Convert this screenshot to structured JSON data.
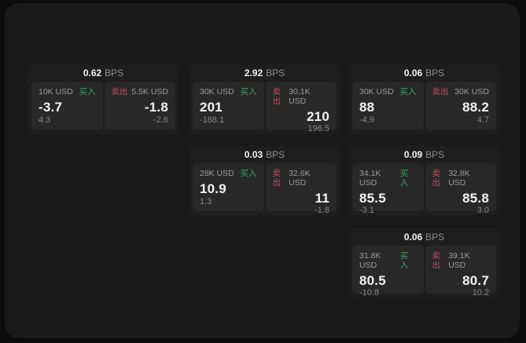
{
  "page": {
    "bps_unit": "BPS",
    "buy_label": "买入",
    "sell_label": "卖出"
  },
  "colors": {
    "background": "#0c0c0c",
    "panel": "#1a1a1a",
    "card": "#1e1e1e",
    "subpanel": "#282828",
    "buy_green": "#3aa566",
    "sell_red": "#c04a63",
    "text_primary": "#f4f4f4",
    "text_muted": "#9b9b9b"
  },
  "cards": [
    {
      "bps": "0.62",
      "buy": {
        "amount": "10K USD",
        "price": "-3.7",
        "delta": "4.3"
      },
      "sell": {
        "amount": "5.5K USD",
        "price": "-1.8",
        "delta": "-2.6"
      }
    },
    {
      "bps": "2.92",
      "buy": {
        "amount": "30K USD",
        "price": "201",
        "delta": "-188.1"
      },
      "sell": {
        "amount": "30.1K USD",
        "price": "210",
        "delta": "196.5"
      }
    },
    {
      "bps": "0.06",
      "buy": {
        "amount": "30K USD",
        "price": "88",
        "delta": "-4.9"
      },
      "sell": {
        "amount": "30K USD",
        "price": "88.2",
        "delta": "4.7"
      }
    },
    {
      "bps": "0.03",
      "buy": {
        "amount": "28K USD",
        "price": "10.9",
        "delta": "1.3"
      },
      "sell": {
        "amount": "32.6K USD",
        "price": "11",
        "delta": "-1.8"
      }
    },
    {
      "bps": "0.09",
      "buy": {
        "amount": "34.1K USD",
        "price": "85.5",
        "delta": "-3.1"
      },
      "sell": {
        "amount": "32.8K USD",
        "price": "85.8",
        "delta": "3.0"
      }
    },
    {
      "bps": "0.06",
      "buy": {
        "amount": "31.8K USD",
        "price": "80.5",
        "delta": "-10.8"
      },
      "sell": {
        "amount": "39.1K USD",
        "price": "80.7",
        "delta": "10.2"
      }
    }
  ]
}
